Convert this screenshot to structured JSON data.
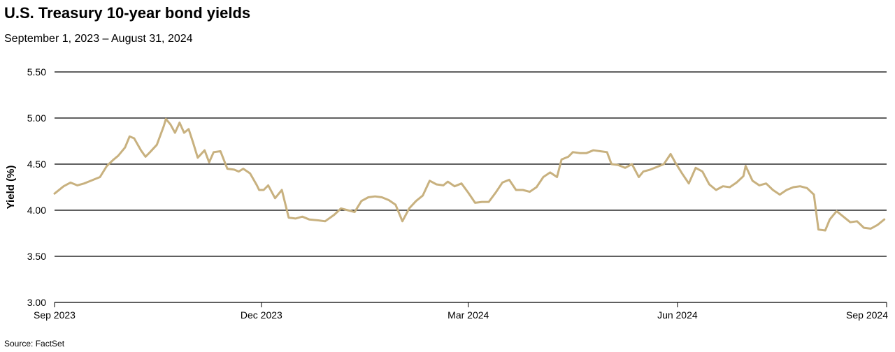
{
  "chart_data": {
    "type": "line",
    "title": "U.S. Treasury 10-year bond yields",
    "subtitle": "September 1, 2023 – August 31, 2024",
    "ylabel": "Yield (%)",
    "xlabel": "",
    "source": "Source: FactSet",
    "xlim": [
      "2023-09-01",
      "2024-09-01"
    ],
    "ylim": [
      3.0,
      5.5
    ],
    "yticks": [
      3.0,
      3.5,
      4.0,
      4.5,
      5.0,
      5.5
    ],
    "ytick_labels": [
      "3.00",
      "3.50",
      "4.00",
      "4.50",
      "5.00",
      "5.50"
    ],
    "xticks": [
      "2023-09-01",
      "2023-12-01",
      "2024-03-01",
      "2024-06-01",
      "2024-09-01"
    ],
    "xtick_labels": [
      "Sep 2023",
      "Dec 2023",
      "Mar 2024",
      "Jun 2024",
      "Sep 2024"
    ],
    "grid": "horizontal",
    "line_color": "#c8b17f",
    "series": [
      {
        "x": [
          "2023-09-01",
          "2023-09-05",
          "2023-09-08",
          "2023-09-11",
          "2023-09-14",
          "2023-09-19",
          "2023-09-21",
          "2023-09-24",
          "2023-09-27",
          "2023-09-29",
          "2023-10-02",
          "2023-10-04",
          "2023-10-06",
          "2023-10-09",
          "2023-10-11",
          "2023-10-13",
          "2023-10-16",
          "2023-10-19",
          "2023-10-20",
          "2023-10-22",
          "2023-10-24",
          "2023-10-26",
          "2023-10-28",
          "2023-10-30",
          "2023-11-01",
          "2023-11-03",
          "2023-11-06",
          "2023-11-08",
          "2023-11-10",
          "2023-11-13",
          "2023-11-16",
          "2023-11-19",
          "2023-11-21",
          "2023-11-23",
          "2023-11-26",
          "2023-11-29",
          "2023-11-30",
          "2023-12-02",
          "2023-12-04",
          "2023-12-07",
          "2023-12-10",
          "2023-12-13",
          "2023-12-16",
          "2023-12-19",
          "2023-12-22",
          "2023-12-26",
          "2023-12-29",
          "2024-01-02",
          "2024-01-05",
          "2024-01-08",
          "2024-01-11",
          "2024-01-14",
          "2024-01-17",
          "2024-01-20",
          "2024-01-23",
          "2024-01-26",
          "2024-01-29",
          "2024-02-01",
          "2024-02-04",
          "2024-02-07",
          "2024-02-10",
          "2024-02-13",
          "2024-02-16",
          "2024-02-19",
          "2024-02-21",
          "2024-02-24",
          "2024-02-27",
          "2024-03-01",
          "2024-03-04",
          "2024-03-07",
          "2024-03-10",
          "2024-03-13",
          "2024-03-16",
          "2024-03-19",
          "2024-03-22",
          "2024-03-25",
          "2024-03-28",
          "2024-03-31",
          "2024-04-03",
          "2024-04-06",
          "2024-04-09",
          "2024-04-11",
          "2024-04-14",
          "2024-04-16",
          "2024-04-19",
          "2024-04-22",
          "2024-04-25",
          "2024-04-28",
          "2024-05-01",
          "2024-05-03",
          "2024-05-06",
          "2024-05-09",
          "2024-05-12",
          "2024-05-15",
          "2024-05-17",
          "2024-05-20",
          "2024-05-23",
          "2024-05-26",
          "2024-05-29",
          "2024-05-31",
          "2024-06-03",
          "2024-06-06",
          "2024-06-09",
          "2024-06-12",
          "2024-06-15",
          "2024-06-18",
          "2024-06-21",
          "2024-06-24",
          "2024-06-27",
          "2024-06-30",
          "2024-07-01",
          "2024-07-04",
          "2024-07-07",
          "2024-07-10",
          "2024-07-13",
          "2024-07-16",
          "2024-07-19",
          "2024-07-22",
          "2024-07-25",
          "2024-07-28",
          "2024-07-31",
          "2024-08-02",
          "2024-08-05",
          "2024-08-07",
          "2024-08-10",
          "2024-08-13",
          "2024-08-16",
          "2024-08-19",
          "2024-08-22",
          "2024-08-25",
          "2024-08-28",
          "2024-08-31"
        ],
        "values": [
          4.18,
          4.26,
          4.3,
          4.27,
          4.29,
          4.34,
          4.36,
          4.48,
          4.55,
          4.59,
          4.68,
          4.8,
          4.78,
          4.65,
          4.58,
          4.63,
          4.71,
          4.91,
          4.99,
          4.93,
          4.84,
          4.95,
          4.84,
          4.88,
          4.73,
          4.57,
          4.65,
          4.52,
          4.63,
          4.64,
          4.45,
          4.44,
          4.42,
          4.45,
          4.4,
          4.27,
          4.22,
          4.22,
          4.27,
          4.13,
          4.22,
          3.92,
          3.91,
          3.93,
          3.9,
          3.89,
          3.88,
          3.95,
          4.02,
          4.0,
          3.98,
          4.1,
          4.14,
          4.15,
          4.14,
          4.11,
          4.06,
          3.88,
          4.02,
          4.1,
          4.16,
          4.32,
          4.28,
          4.27,
          4.31,
          4.26,
          4.29,
          4.19,
          4.08,
          4.09,
          4.09,
          4.19,
          4.3,
          4.33,
          4.22,
          4.22,
          4.2,
          4.25,
          4.36,
          4.41,
          4.36,
          4.55,
          4.58,
          4.63,
          4.62,
          4.62,
          4.65,
          4.64,
          4.63,
          4.5,
          4.49,
          4.46,
          4.5,
          4.36,
          4.42,
          4.44,
          4.47,
          4.5,
          4.61,
          4.52,
          4.4,
          4.29,
          4.46,
          4.42,
          4.28,
          4.22,
          4.26,
          4.25,
          4.3,
          4.37,
          4.48,
          4.32,
          4.27,
          4.29,
          4.22,
          4.17,
          4.22,
          4.25,
          4.26,
          4.24,
          4.17,
          3.79,
          3.78,
          3.9,
          3.99,
          3.93,
          3.87,
          3.88,
          3.81,
          3.8,
          3.84,
          3.9
        ]
      }
    ]
  }
}
